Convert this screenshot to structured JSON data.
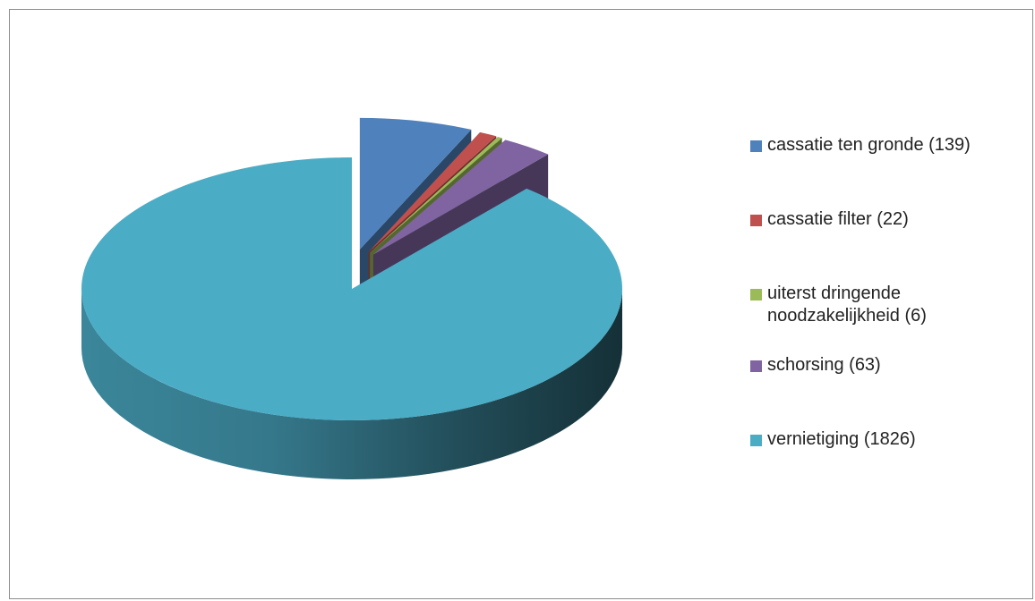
{
  "chart_data": {
    "type": "pie",
    "style": "3d-exploded",
    "slices": [
      {
        "label": "cassatie ten gronde (139)",
        "value": 139,
        "color": "#4f81bd",
        "exploded": true
      },
      {
        "label": "cassatie filter (22)",
        "value": 22,
        "color": "#c0504d",
        "exploded": true
      },
      {
        "label": "uiterst dringende noodzakelijkheid (6)",
        "value": 6,
        "color": "#9bbb59",
        "exploded": true
      },
      {
        "label": "schorsing (63)",
        "value": 63,
        "color": "#8064a2",
        "exploded": true
      },
      {
        "label": "vernietiging (1826)",
        "value": 1826,
        "color": "#4bacc6",
        "exploded": false
      }
    ],
    "legend_position": "right"
  }
}
